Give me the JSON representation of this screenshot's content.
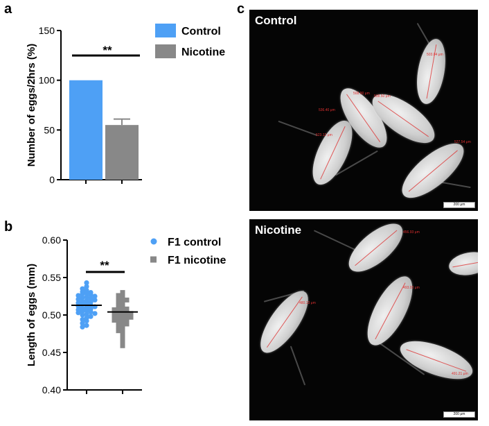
{
  "panels": {
    "a": "a",
    "b": "b",
    "c": "c"
  },
  "chart_data": [
    {
      "type": "bar",
      "panel": "a",
      "categories": [
        "Control",
        "Nicotine"
      ],
      "values": [
        100,
        55
      ],
      "errors": [
        0,
        6
      ],
      "colors": [
        "#4ea0f5",
        "#888888"
      ],
      "ylabel": "Number of eggs/2hrs (%)",
      "yticks": [
        0,
        50,
        100,
        150
      ],
      "ylim": [
        0,
        150
      ],
      "significance": "**",
      "legend": [
        {
          "label": "Control",
          "color": "#4ea0f5"
        },
        {
          "label": "Nicotine",
          "color": "#888888"
        }
      ]
    },
    {
      "type": "scatter",
      "panel": "b",
      "ylabel": "Length of eggs (mm)",
      "yticks": [
        "0.40",
        "0.45",
        "0.50",
        "0.55",
        "0.60"
      ],
      "ylim": [
        0.4,
        0.6
      ],
      "significance": "**",
      "series": [
        {
          "name": "F1 control",
          "color": "#4ea0f5",
          "marker": "circle",
          "mean": 0.513,
          "values": [
            0.543,
            0.538,
            0.535,
            0.533,
            0.531,
            0.53,
            0.529,
            0.528,
            0.527,
            0.526,
            0.525,
            0.524,
            0.523,
            0.522,
            0.521,
            0.52,
            0.519,
            0.518,
            0.517,
            0.516,
            0.515,
            0.514,
            0.513,
            0.512,
            0.511,
            0.51,
            0.509,
            0.508,
            0.507,
            0.506,
            0.505,
            0.504,
            0.503,
            0.502,
            0.501,
            0.5,
            0.498,
            0.496,
            0.494,
            0.492,
            0.489,
            0.486,
            0.484
          ]
        },
        {
          "name": "F1 nicotine",
          "color": "#888888",
          "marker": "square",
          "mean": 0.504,
          "values": [
            0.53,
            0.528,
            0.526,
            0.524,
            0.522,
            0.52,
            0.518,
            0.516,
            0.514,
            0.512,
            0.51,
            0.509,
            0.508,
            0.507,
            0.506,
            0.505,
            0.504,
            0.503,
            0.502,
            0.501,
            0.5,
            0.499,
            0.498,
            0.497,
            0.496,
            0.495,
            0.494,
            0.493,
            0.492,
            0.49,
            0.488,
            0.486,
            0.484,
            0.482,
            0.479,
            0.476,
            0.472,
            0.468,
            0.463,
            0.459
          ]
        }
      ]
    }
  ],
  "images": [
    {
      "label": "Control",
      "scale": "200 μm",
      "measurements": [
        "503.04 μm",
        "508.90 μm",
        "536.40 μm",
        "508.50 μm",
        "523.12 μm",
        "527.54 μm"
      ]
    },
    {
      "label": "Nicotine",
      "scale": "200 μm",
      "measurements": [
        "456.93 μm",
        "493.03 μm",
        "480.13 μm",
        "491.21 μm"
      ]
    }
  ]
}
